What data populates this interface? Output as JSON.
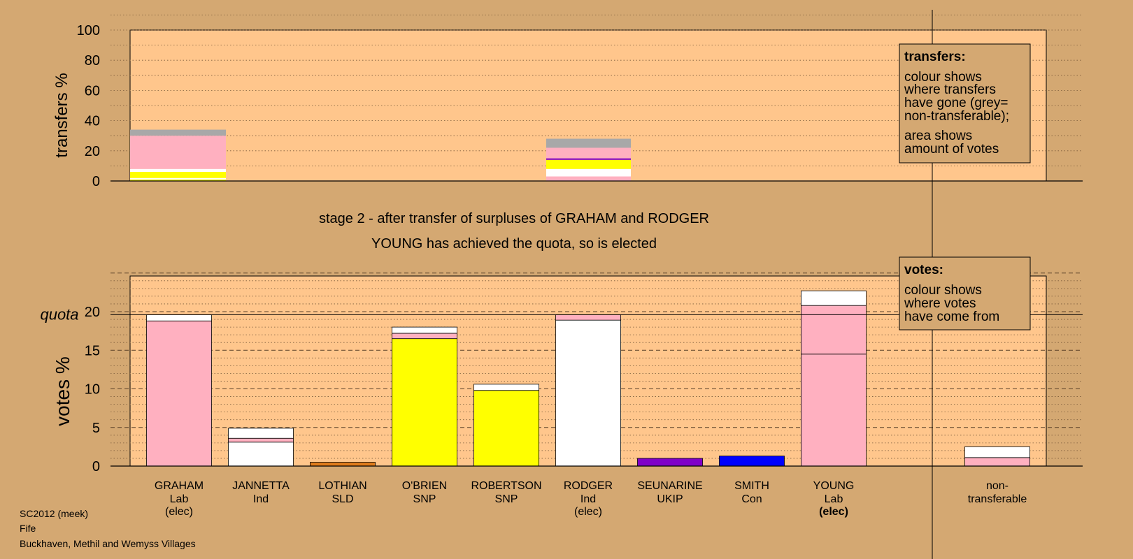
{
  "colors": {
    "background": "#d4a872",
    "plot_bg": "#ffc68c",
    "Lab": "#ffb0c0",
    "Ind": "#ffffff",
    "SLD": "#e07c1c",
    "SNP": "#ffff00",
    "UKIP": "#8000c8",
    "Con": "#0000ff",
    "nontransferable": "#a8a8a8"
  },
  "titles": {
    "line1": "stage 2 - after transfer of surpluses of GRAHAM and RODGER",
    "line2": "YOUNG has achieved the quota, so is elected"
  },
  "footer": {
    "line1": "SC2012 (meek)",
    "line2": "Fife",
    "line3": "Buckhaven, Methil and Wemyss Villages"
  },
  "legends": {
    "transfers": {
      "title": "transfers:",
      "lines1": [
        "colour shows",
        "where transfers",
        "have gone (grey=",
        "non-transferable);"
      ],
      "lines2": [
        "area shows",
        "amount of votes"
      ]
    },
    "votes": {
      "title": "votes:",
      "lines": [
        "colour shows",
        "where votes",
        "have come from"
      ]
    }
  },
  "chart_data": [
    {
      "type": "bar",
      "ylabel": "transfers %",
      "ylim": [
        0,
        100
      ],
      "yticks": [
        0,
        20,
        40,
        60,
        80,
        100
      ],
      "grid": "dotted",
      "legend_position": "top-right",
      "bars": [
        {
          "candidate": "GRAHAM",
          "segments": [
            {
              "party": "SNP",
              "value": 1
            },
            {
              "party": "Ind",
              "value": 1
            },
            {
              "party": "SNP",
              "value": 4
            },
            {
              "party": "Ind",
              "value": 2
            },
            {
              "party": "Lab",
              "value": 22
            },
            {
              "party": "nontransferable",
              "value": 4
            }
          ]
        },
        {
          "candidate": "RODGER",
          "segments": [
            {
              "party": "Lab",
              "value": 3
            },
            {
              "party": "Ind",
              "value": 5
            },
            {
              "party": "SNP",
              "value": 6
            },
            {
              "party": "UKIP",
              "value": 1
            },
            {
              "party": "Lab",
              "value": 7
            },
            {
              "party": "nontransferable",
              "value": 6
            }
          ]
        }
      ]
    },
    {
      "type": "bar",
      "ylabel": "votes %",
      "ylim": [
        0,
        25
      ],
      "yticks": [
        0,
        5,
        10,
        15,
        20
      ],
      "quota": {
        "label": "quota",
        "value": 19.6
      },
      "legend_position": "top-right",
      "bars": [
        {
          "name": "GRAHAM",
          "party": "Lab",
          "status": "(elec)",
          "segments": [
            {
              "party": "Lab",
              "value": 18.8
            },
            {
              "party": "Ind",
              "value": 0.8
            }
          ]
        },
        {
          "name": "JANNETTA",
          "party": "Ind",
          "status": "",
          "segments": [
            {
              "party": "Ind",
              "value": 3.1
            },
            {
              "party": "Lab",
              "value": 0.5
            },
            {
              "party": "Ind",
              "value": 1.3
            }
          ]
        },
        {
          "name": "LOTHIAN",
          "party": "SLD",
          "status": "",
          "segments": [
            {
              "party": "SLD",
              "value": 0.5
            }
          ]
        },
        {
          "name": "O'BRIEN",
          "party": "SNP",
          "status": "",
          "segments": [
            {
              "party": "SNP",
              "value": 16.5
            },
            {
              "party": "Lab",
              "value": 0.7
            },
            {
              "party": "Ind",
              "value": 0.8
            }
          ]
        },
        {
          "name": "ROBERTSON",
          "party": "SNP",
          "status": "",
          "segments": [
            {
              "party": "SNP",
              "value": 9.8
            },
            {
              "party": "Ind",
              "value": 0.8
            }
          ]
        },
        {
          "name": "RODGER",
          "party": "Ind",
          "status": "(elec)",
          "segments": [
            {
              "party": "Ind",
              "value": 18.9
            },
            {
              "party": "Lab",
              "value": 0.7
            }
          ]
        },
        {
          "name": "SEUNARINE",
          "party": "UKIP",
          "status": "",
          "segments": [
            {
              "party": "UKIP",
              "value": 1.0
            }
          ]
        },
        {
          "name": "SMITH",
          "party": "Con",
          "status": "",
          "segments": [
            {
              "party": "Con",
              "value": 1.3
            }
          ]
        },
        {
          "name": "YOUNG",
          "party": "Lab",
          "status": "(elec)",
          "status_bold": true,
          "segments": [
            {
              "party": "Lab",
              "value": 14.5
            },
            {
              "party": "Lab",
              "value": 6.3
            },
            {
              "party": "Ind",
              "value": 1.9
            }
          ]
        },
        {
          "name": "non-",
          "party": "transferable",
          "status": "",
          "segments": [
            {
              "party": "Lab",
              "value": 1.1
            },
            {
              "party": "Ind",
              "value": 1.4
            }
          ]
        }
      ]
    }
  ]
}
